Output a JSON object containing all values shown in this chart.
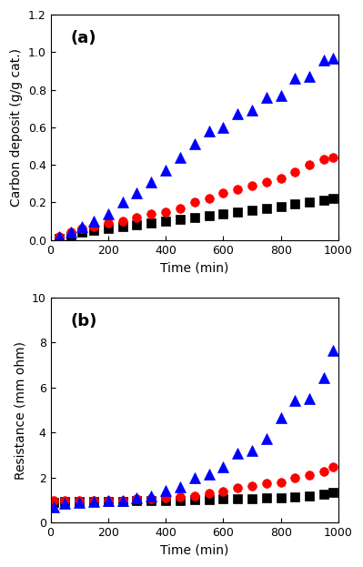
{
  "panel_a": {
    "title": "(a)",
    "xlabel": "Time (min)",
    "ylabel": "Carbon deposit (g/g cat.)",
    "xlim": [
      0,
      1000
    ],
    "ylim": [
      0,
      1.2
    ],
    "yticks": [
      0.0,
      0.2,
      0.4,
      0.6,
      0.8,
      1.0,
      1.2
    ],
    "xticks": [
      0,
      200,
      400,
      600,
      800,
      1000
    ],
    "black_squares": {
      "x": [
        30,
        70,
        110,
        150,
        200,
        250,
        300,
        350,
        400,
        450,
        500,
        550,
        600,
        650,
        700,
        750,
        800,
        850,
        900,
        950,
        980
      ],
      "y": [
        0.01,
        0.02,
        0.04,
        0.05,
        0.06,
        0.07,
        0.08,
        0.09,
        0.1,
        0.11,
        0.12,
        0.13,
        0.14,
        0.15,
        0.16,
        0.17,
        0.18,
        0.19,
        0.2,
        0.21,
        0.22
      ],
      "color": "#000000",
      "marker": "s",
      "markersize": 7
    },
    "red_circles": {
      "x": [
        30,
        70,
        110,
        150,
        200,
        250,
        300,
        350,
        400,
        450,
        500,
        550,
        600,
        650,
        700,
        750,
        800,
        850,
        900,
        950,
        980
      ],
      "y": [
        0.02,
        0.04,
        0.06,
        0.07,
        0.09,
        0.1,
        0.12,
        0.14,
        0.15,
        0.17,
        0.2,
        0.22,
        0.25,
        0.27,
        0.29,
        0.31,
        0.33,
        0.36,
        0.4,
        0.43,
        0.44
      ],
      "color": "#ff0000",
      "marker": "o",
      "markersize": 7
    },
    "blue_triangles": {
      "x": [
        30,
        70,
        110,
        150,
        200,
        250,
        300,
        350,
        400,
        450,
        500,
        550,
        600,
        650,
        700,
        750,
        800,
        850,
        900,
        950,
        980
      ],
      "y": [
        0.02,
        0.04,
        0.07,
        0.1,
        0.14,
        0.2,
        0.25,
        0.31,
        0.37,
        0.44,
        0.51,
        0.58,
        0.6,
        0.67,
        0.69,
        0.76,
        0.77,
        0.86,
        0.87,
        0.96,
        0.97
      ],
      "color": "#0000ff",
      "marker": "^",
      "markersize": 8
    }
  },
  "panel_b": {
    "title": "(b)",
    "xlabel": "Time (min)",
    "ylabel": "Resistance (mm ohm)",
    "xlim": [
      0,
      1000
    ],
    "ylim": [
      0,
      10
    ],
    "yticks": [
      0,
      2,
      4,
      6,
      8,
      10
    ],
    "xticks": [
      0,
      200,
      400,
      600,
      800,
      1000
    ],
    "black_squares": {
      "x": [
        10,
        50,
        100,
        150,
        200,
        250,
        300,
        350,
        400,
        450,
        500,
        550,
        600,
        650,
        700,
        750,
        800,
        850,
        900,
        950,
        980
      ],
      "y": [
        0.9,
        0.95,
        0.95,
        0.95,
        0.95,
        0.95,
        0.97,
        0.98,
        1.0,
        1.0,
        1.02,
        1.03,
        1.05,
        1.06,
        1.08,
        1.1,
        1.12,
        1.15,
        1.2,
        1.28,
        1.35
      ],
      "color": "#000000",
      "marker": "s",
      "markersize": 7
    },
    "red_circles": {
      "x": [
        10,
        50,
        100,
        150,
        200,
        250,
        300,
        350,
        400,
        450,
        500,
        550,
        600,
        650,
        700,
        750,
        800,
        850,
        900,
        950,
        980
      ],
      "y": [
        1.0,
        1.0,
        1.0,
        1.0,
        1.0,
        1.0,
        1.05,
        1.05,
        1.1,
        1.15,
        1.2,
        1.3,
        1.4,
        1.55,
        1.65,
        1.75,
        1.8,
        2.0,
        2.1,
        2.3,
        2.5
      ],
      "color": "#ff0000",
      "marker": "o",
      "markersize": 7
    },
    "blue_triangles": {
      "x": [
        10,
        50,
        100,
        150,
        200,
        250,
        300,
        350,
        400,
        450,
        500,
        550,
        600,
        650,
        700,
        750,
        800,
        850,
        900,
        950,
        980
      ],
      "y": [
        0.7,
        0.88,
        0.92,
        0.95,
        0.98,
        1.0,
        1.1,
        1.2,
        1.45,
        1.58,
        2.0,
        2.15,
        2.5,
        3.1,
        3.2,
        3.75,
        4.65,
        5.45,
        5.5,
        6.45,
        7.65
      ],
      "color": "#0000ff",
      "marker": "^",
      "markersize": 8
    }
  },
  "fig_bg": "#ffffff",
  "axes_bg": "#ffffff"
}
